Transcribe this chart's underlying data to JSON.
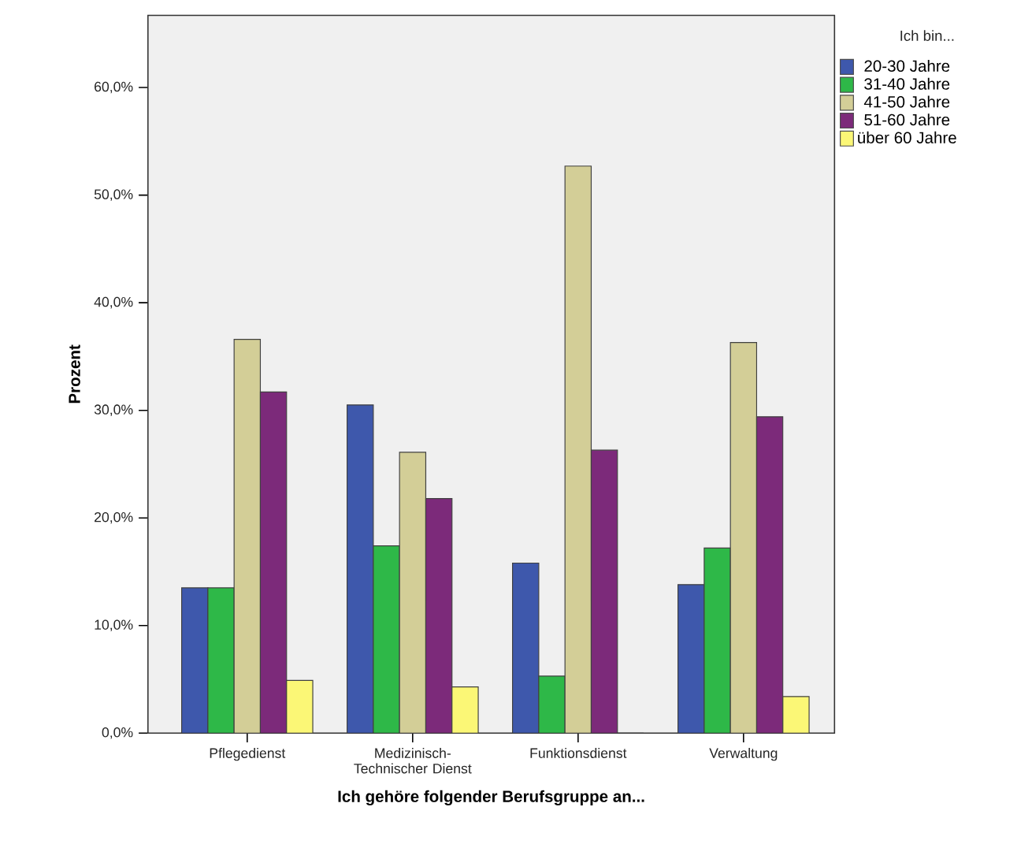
{
  "chart_data": {
    "type": "bar",
    "xlabel": "Ich gehöre folgender Berufsgruppe an...",
    "ylabel": "Prozent",
    "legend_title": "Ich bin...",
    "legend": "top right",
    "categories": [
      "Pflegedienst",
      "Medizinisch-Technischer Dienst",
      "Funktionsdienst",
      "Verwaltung"
    ],
    "series": [
      {
        "name": "20-30 Jahre",
        "color": "#3e58ac",
        "values": [
          13.5,
          30.5,
          15.8,
          13.8
        ]
      },
      {
        "name": "31-40 Jahre",
        "color": "#2eb848",
        "values": [
          13.5,
          17.4,
          5.3,
          17.2
        ]
      },
      {
        "name": "41-50 Jahre",
        "color": "#d3ce97",
        "values": [
          36.6,
          26.1,
          52.7,
          36.3
        ]
      },
      {
        "name": "51-60 Jahre",
        "color": "#7c2a7a",
        "values": [
          31.7,
          21.8,
          26.3,
          29.4
        ]
      },
      {
        "name": "über 60 Jahre",
        "color": "#fbf776",
        "values": [
          4.9,
          4.3,
          0,
          3.4
        ]
      }
    ],
    "ylim": [
      0,
      66.7
    ],
    "yticks": [
      {
        "value": 0,
        "label": "0,0%"
      },
      {
        "value": 10,
        "label": "10,0%"
      },
      {
        "value": 20,
        "label": "20,0%"
      },
      {
        "value": 30,
        "label": "30,0%"
      },
      {
        "value": 40,
        "label": "40,0%"
      },
      {
        "value": 50,
        "label": "50,0%"
      },
      {
        "value": 60,
        "label": "60,0%"
      }
    ],
    "grid": false
  }
}
